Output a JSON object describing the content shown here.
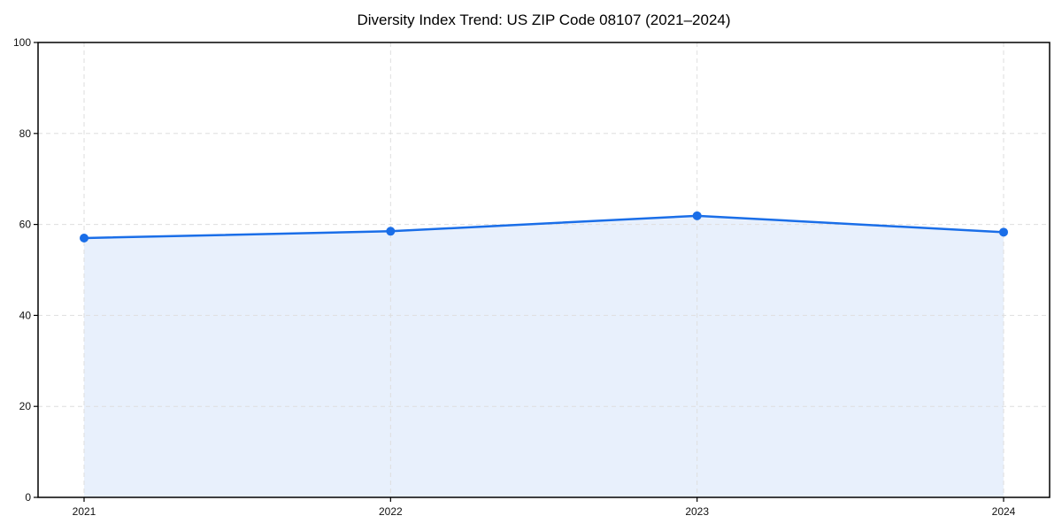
{
  "chart_data": {
    "type": "area",
    "title": "Diversity Index Trend: US ZIP Code 08107 (2021–2024)",
    "x": [
      2021,
      2022,
      2023,
      2024
    ],
    "xticklabels": [
      "2021",
      "2022",
      "2023",
      "2024"
    ],
    "series": [
      {
        "name": "Diversity Index",
        "values": [
          57.0,
          58.5,
          61.9,
          58.3
        ]
      }
    ],
    "xlabel": "",
    "ylabel": "",
    "ylim": [
      0,
      100
    ],
    "yticks": [
      0,
      20,
      40,
      60,
      80,
      100
    ],
    "grid": "dashed both axes",
    "legend": "none",
    "colors": {
      "line": "#1a6ee8",
      "marker": "#1a6ee8",
      "fill": "#e8f0fc",
      "grid": "#dedede",
      "spine": "#000000",
      "tick_label": "#111111",
      "background": "#ffffff"
    }
  }
}
